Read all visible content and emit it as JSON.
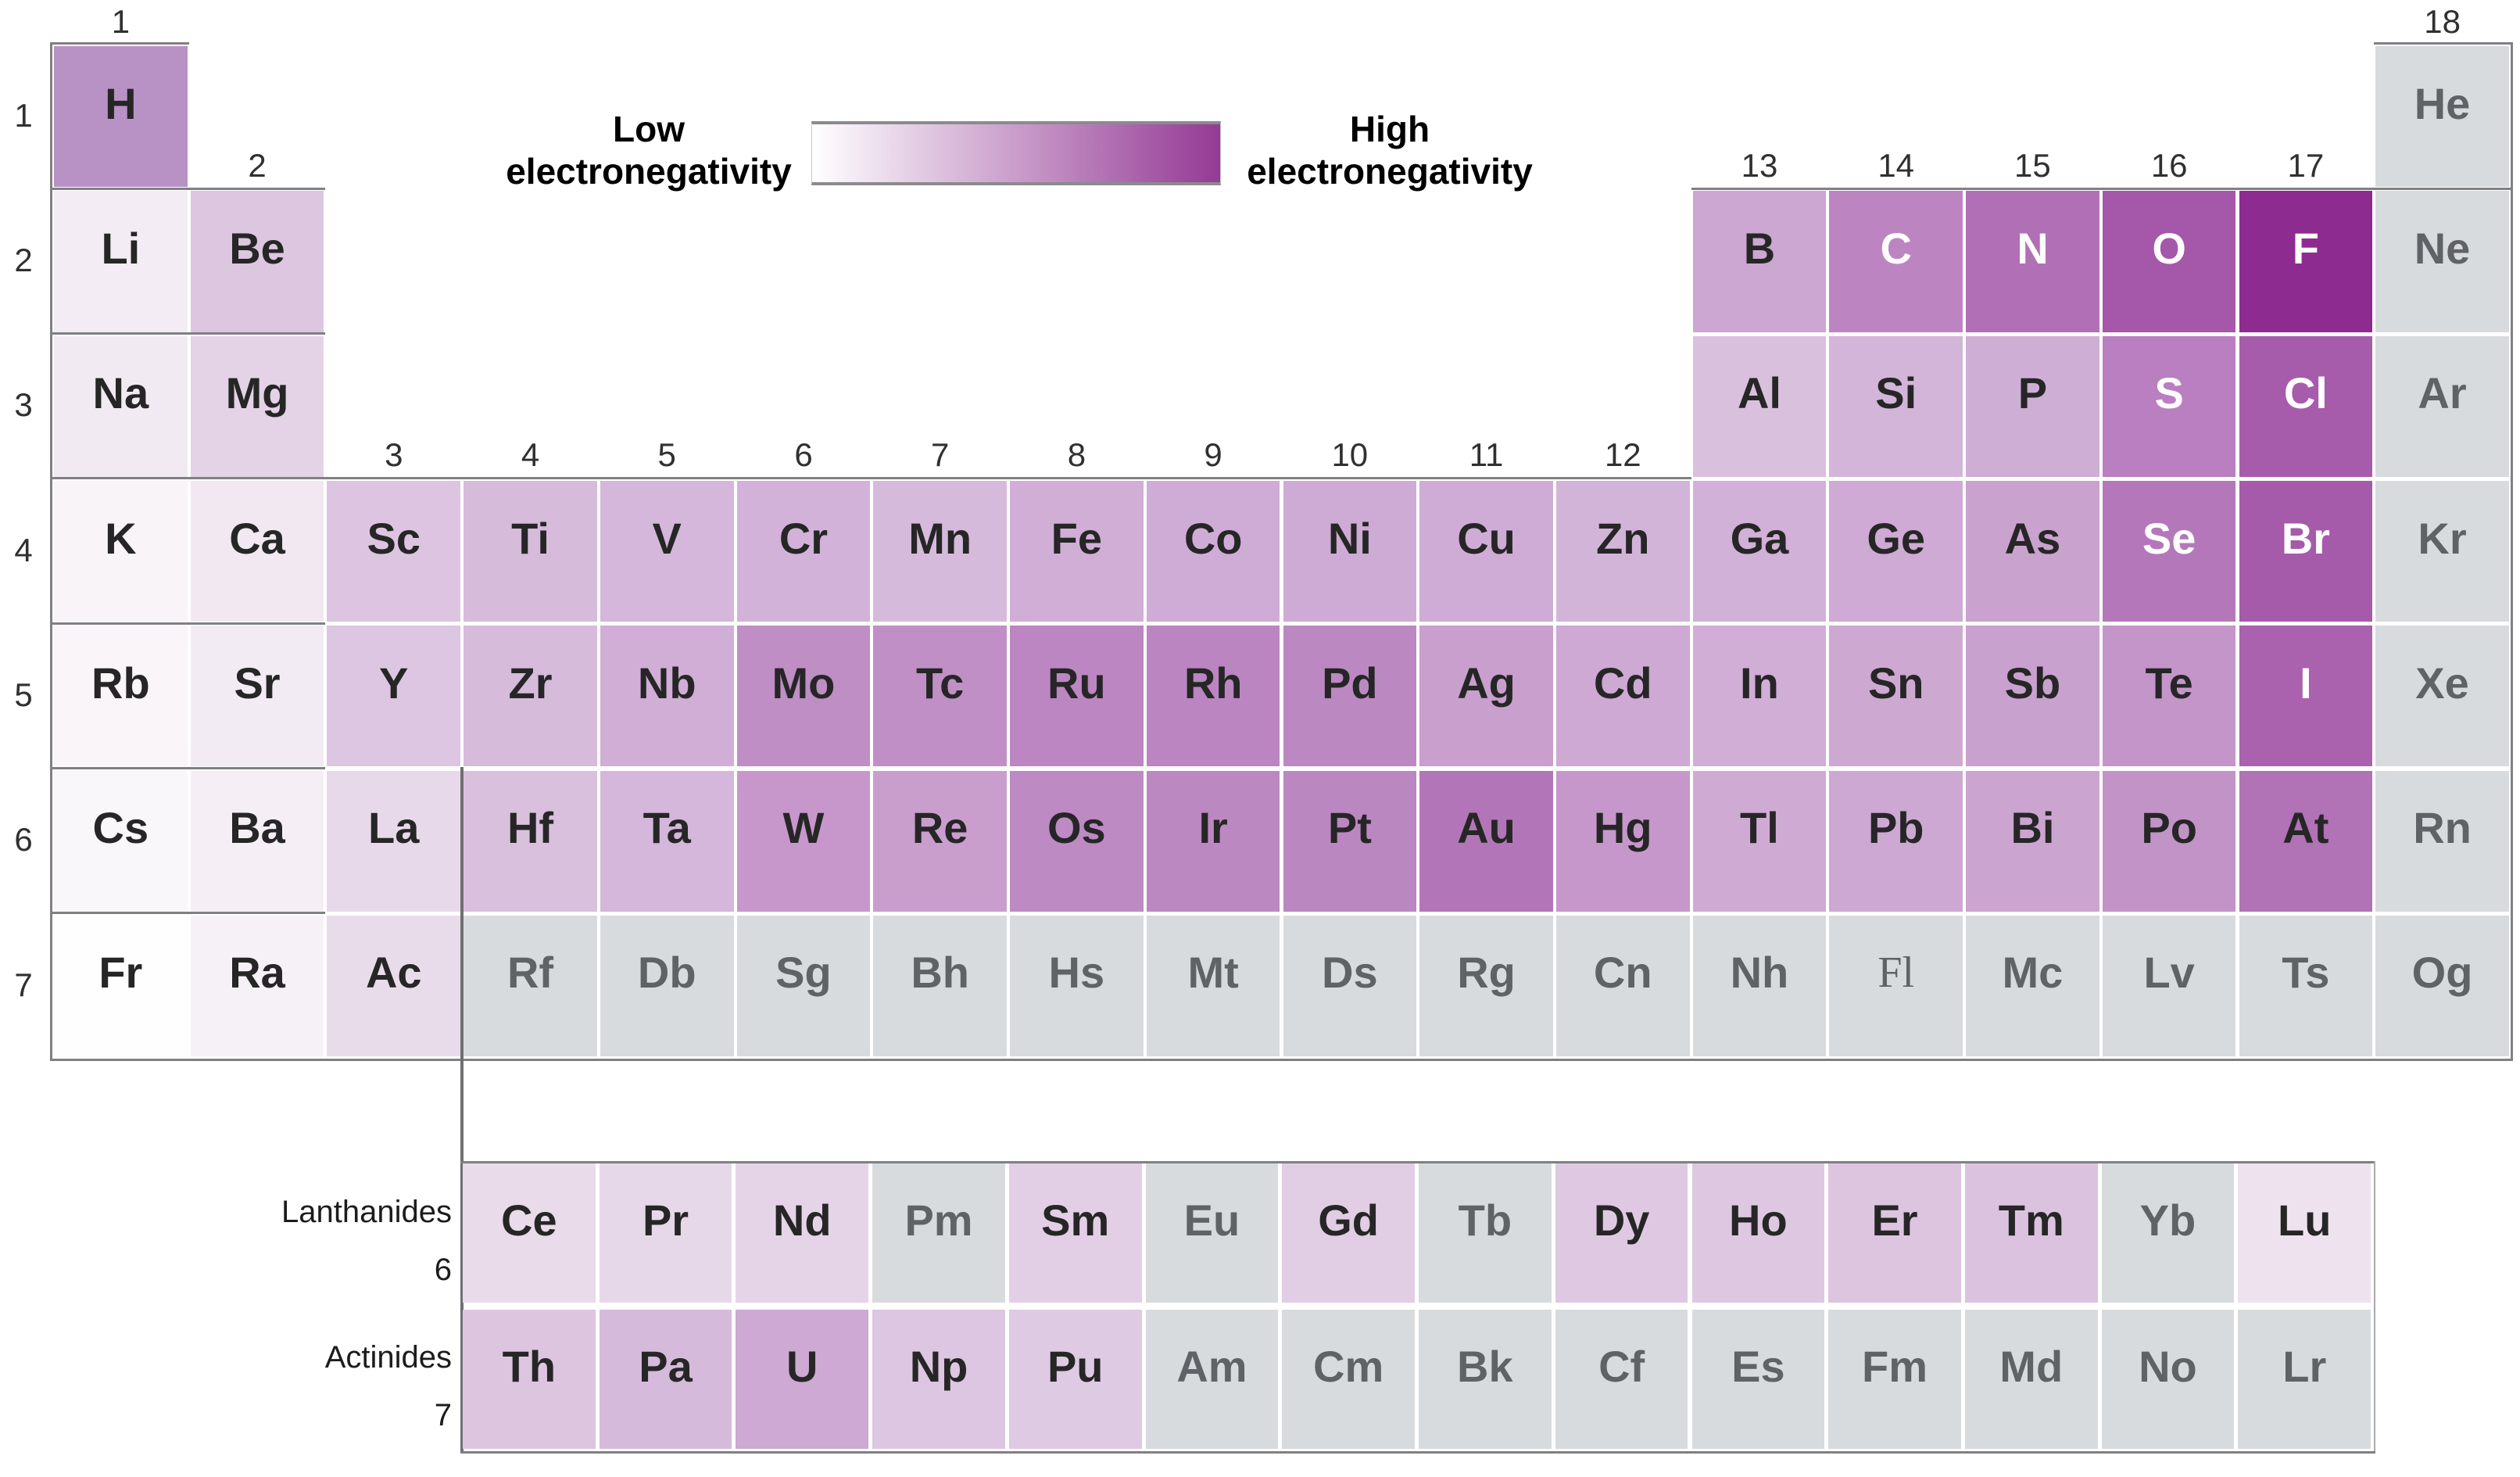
{
  "legend": {
    "low_line1": "Low",
    "low_line2": "electronegativity",
    "high_line1": "High",
    "high_line2": "electronegativity",
    "gradient_start": "#ffffff",
    "gradient_end": "#943a95"
  },
  "colors": {
    "background": "#ffffff",
    "gray_cell": "#d8dbde",
    "text_dark": "#262626",
    "text_white": "#ffffff",
    "text_gray": "#5f6266",
    "line": "#808083",
    "fblock_line": "#6f6f72",
    "block_edge": "#aaaaad"
  },
  "group_labels_top": [
    {
      "label": "1",
      "col": 0
    },
    {
      "label": "18",
      "col": 17
    }
  ],
  "group_labels_p": [
    {
      "label": "2",
      "col": 1
    },
    {
      "label": "13",
      "col": 12
    },
    {
      "label": "14",
      "col": 13
    },
    {
      "label": "15",
      "col": 14
    },
    {
      "label": "16",
      "col": 15
    },
    {
      "label": "17",
      "col": 16
    }
  ],
  "group_labels_d": [
    {
      "label": "3",
      "col": 2
    },
    {
      "label": "4",
      "col": 3
    },
    {
      "label": "5",
      "col": 4
    },
    {
      "label": "6",
      "col": 5
    },
    {
      "label": "7",
      "col": 6
    },
    {
      "label": "8",
      "col": 7
    },
    {
      "label": "9",
      "col": 8
    },
    {
      "label": "10",
      "col": 9
    },
    {
      "label": "11",
      "col": 10
    },
    {
      "label": "12",
      "col": 11
    }
  ],
  "period_labels": [
    "1",
    "2",
    "3",
    "4",
    "5",
    "6",
    "7"
  ],
  "elements": [
    {
      "symbol": "H",
      "row": 1,
      "col": 0,
      "bg": "#b892c5",
      "text": "dark"
    },
    {
      "symbol": "He",
      "row": 1,
      "col": 17,
      "bg": "#d8dbde",
      "text": "gray"
    },
    {
      "symbol": "Li",
      "row": 2,
      "col": 0,
      "bg": "#f3ecf4",
      "text": "dark"
    },
    {
      "symbol": "Be",
      "row": 2,
      "col": 1,
      "bg": "#dcc6e0",
      "text": "dark"
    },
    {
      "symbol": "B",
      "row": 2,
      "col": 12,
      "bg": "#cba7d1",
      "text": "dark"
    },
    {
      "symbol": "C",
      "row": 2,
      "col": 13,
      "bg": "#bc85c2",
      "text": "white"
    },
    {
      "symbol": "N",
      "row": 2,
      "col": 14,
      "bg": "#b170b6",
      "text": "white"
    },
    {
      "symbol": "O",
      "row": 2,
      "col": 15,
      "bg": "#a557a9",
      "text": "white"
    },
    {
      "symbol": "F",
      "row": 2,
      "col": 16,
      "bg": "#8e2b90",
      "text": "white"
    },
    {
      "symbol": "Ne",
      "row": 2,
      "col": 17,
      "bg": "#d8dbde",
      "text": "gray"
    },
    {
      "symbol": "Na",
      "row": 3,
      "col": 0,
      "bg": "#f2eaf3",
      "text": "dark"
    },
    {
      "symbol": "Mg",
      "row": 3,
      "col": 1,
      "bg": "#e4d2e6",
      "text": "dark"
    },
    {
      "symbol": "Al",
      "row": 3,
      "col": 12,
      "bg": "#d9c0dd",
      "text": "dark"
    },
    {
      "symbol": "Si",
      "row": 3,
      "col": 13,
      "bg": "#d3b5d9",
      "text": "dark"
    },
    {
      "symbol": "P",
      "row": 3,
      "col": 14,
      "bg": "#cfaed5",
      "text": "dark"
    },
    {
      "symbol": "S",
      "row": 3,
      "col": 15,
      "bg": "#ba7fc0",
      "text": "white"
    },
    {
      "symbol": "Cl",
      "row": 3,
      "col": 16,
      "bg": "#a75cab",
      "text": "white"
    },
    {
      "symbol": "Ar",
      "row": 3,
      "col": 17,
      "bg": "#d8dbde",
      "text": "gray"
    },
    {
      "symbol": "K",
      "row": 4,
      "col": 0,
      "bg": "#f8f4f8",
      "text": "dark"
    },
    {
      "symbol": "Ca",
      "row": 4,
      "col": 1,
      "bg": "#f1e8f2",
      "text": "dark"
    },
    {
      "symbol": "Sc",
      "row": 4,
      "col": 2,
      "bg": "#ddc5e1",
      "text": "dark"
    },
    {
      "symbol": "Ti",
      "row": 4,
      "col": 3,
      "bg": "#d6bbdb",
      "text": "dark"
    },
    {
      "symbol": "V",
      "row": 4,
      "col": 4,
      "bg": "#d4b7da",
      "text": "dark"
    },
    {
      "symbol": "Cr",
      "row": 4,
      "col": 5,
      "bg": "#d2b2d8",
      "text": "dark"
    },
    {
      "symbol": "Mn",
      "row": 4,
      "col": 6,
      "bg": "#d6badb",
      "text": "dark"
    },
    {
      "symbol": "Fe",
      "row": 4,
      "col": 7,
      "bg": "#d0aed6",
      "text": "dark"
    },
    {
      "symbol": "Co",
      "row": 4,
      "col": 8,
      "bg": "#cfacd5",
      "text": "dark"
    },
    {
      "symbol": "Ni",
      "row": 4,
      "col": 9,
      "bg": "#ceabd4",
      "text": "dark"
    },
    {
      "symbol": "Cu",
      "row": 4,
      "col": 10,
      "bg": "#cfacd5",
      "text": "dark"
    },
    {
      "symbol": "Zn",
      "row": 4,
      "col": 11,
      "bg": "#d3b4d9",
      "text": "dark"
    },
    {
      "symbol": "Ga",
      "row": 4,
      "col": 12,
      "bg": "#d1b1d7",
      "text": "dark"
    },
    {
      "symbol": "Ge",
      "row": 4,
      "col": 13,
      "bg": "#ceaad4",
      "text": "dark"
    },
    {
      "symbol": "As",
      "row": 4,
      "col": 14,
      "bg": "#c9a2ce",
      "text": "dark"
    },
    {
      "symbol": "Se",
      "row": 4,
      "col": 15,
      "bg": "#b478ba",
      "text": "white"
    },
    {
      "symbol": "Br",
      "row": 4,
      "col": 16,
      "bg": "#a65aaa",
      "text": "white"
    },
    {
      "symbol": "Kr",
      "row": 4,
      "col": 17,
      "bg": "#d8dbde",
      "text": "gray"
    },
    {
      "symbol": "Rb",
      "row": 5,
      "col": 0,
      "bg": "#f9f5f9",
      "text": "dark"
    },
    {
      "symbol": "Sr",
      "row": 5,
      "col": 1,
      "bg": "#f2ebf3",
      "text": "dark"
    },
    {
      "symbol": "Y",
      "row": 5,
      "col": 2,
      "bg": "#ddc6e1",
      "text": "dark"
    },
    {
      "symbol": "Zr",
      "row": 5,
      "col": 3,
      "bg": "#d6bbdb",
      "text": "dark"
    },
    {
      "symbol": "Nb",
      "row": 5,
      "col": 4,
      "bg": "#d0aed6",
      "text": "dark"
    },
    {
      "symbol": "Mo",
      "row": 5,
      "col": 5,
      "bg": "#bf8ec5",
      "text": "dark"
    },
    {
      "symbol": "Tc",
      "row": 5,
      "col": 6,
      "bg": "#c08fc5",
      "text": "dark"
    },
    {
      "symbol": "Ru",
      "row": 5,
      "col": 7,
      "bg": "#bb86c1",
      "text": "dark"
    },
    {
      "symbol": "Rh",
      "row": 5,
      "col": 8,
      "bg": "#ba85c0",
      "text": "dark"
    },
    {
      "symbol": "Pd",
      "row": 5,
      "col": 9,
      "bg": "#bc88c2",
      "text": "dark"
    },
    {
      "symbol": "Ag",
      "row": 5,
      "col": 10,
      "bg": "#c89fcd",
      "text": "dark"
    },
    {
      "symbol": "Cd",
      "row": 5,
      "col": 11,
      "bg": "#cda9d3",
      "text": "dark"
    },
    {
      "symbol": "In",
      "row": 5,
      "col": 12,
      "bg": "#d0aed6",
      "text": "dark"
    },
    {
      "symbol": "Sn",
      "row": 5,
      "col": 13,
      "bg": "#cda9d2",
      "text": "dark"
    },
    {
      "symbol": "Sb",
      "row": 5,
      "col": 14,
      "bg": "#c9a1ce",
      "text": "dark"
    },
    {
      "symbol": "Te",
      "row": 5,
      "col": 15,
      "bg": "#c495c9",
      "text": "dark"
    },
    {
      "symbol": "I",
      "row": 5,
      "col": 16,
      "bg": "#aa61ae",
      "text": "white"
    },
    {
      "symbol": "Xe",
      "row": 5,
      "col": 17,
      "bg": "#d8dbde",
      "text": "gray"
    },
    {
      "symbol": "Cs",
      "row": 6,
      "col": 0,
      "bg": "#faf7fa",
      "text": "dark"
    },
    {
      "symbol": "Ba",
      "row": 6,
      "col": 1,
      "bg": "#f5eff5",
      "text": "dark"
    },
    {
      "symbol": "La",
      "row": 6,
      "col": 2,
      "bg": "#e8d9ea",
      "text": "dark"
    },
    {
      "symbol": "Hf",
      "row": 6,
      "col": 3,
      "bg": "#d9c0dd",
      "text": "dark"
    },
    {
      "symbol": "Ta",
      "row": 6,
      "col": 4,
      "bg": "#d4b7da",
      "text": "dark"
    },
    {
      "symbol": "W",
      "row": 6,
      "col": 5,
      "bg": "#c797cb",
      "text": "dark"
    },
    {
      "symbol": "Re",
      "row": 6,
      "col": 6,
      "bg": "#c99ecd",
      "text": "dark"
    },
    {
      "symbol": "Os",
      "row": 6,
      "col": 7,
      "bg": "#bd8ac3",
      "text": "dark"
    },
    {
      "symbol": "Ir",
      "row": 6,
      "col": 8,
      "bg": "#bc88c2",
      "text": "dark"
    },
    {
      "symbol": "Pt",
      "row": 6,
      "col": 9,
      "bg": "#bb87c1",
      "text": "dark"
    },
    {
      "symbol": "Au",
      "row": 6,
      "col": 10,
      "bg": "#b276b8",
      "text": "dark"
    },
    {
      "symbol": "Hg",
      "row": 6,
      "col": 11,
      "bg": "#c697cb",
      "text": "dark"
    },
    {
      "symbol": "Tl",
      "row": 6,
      "col": 12,
      "bg": "#cfabd4",
      "text": "dark"
    },
    {
      "symbol": "Pb",
      "row": 6,
      "col": 13,
      "bg": "#cda8d2",
      "text": "dark"
    },
    {
      "symbol": "Bi",
      "row": 6,
      "col": 14,
      "bg": "#cba4d0",
      "text": "dark"
    },
    {
      "symbol": "Po",
      "row": 6,
      "col": 15,
      "bg": "#c293c7",
      "text": "dark"
    },
    {
      "symbol": "At",
      "row": 6,
      "col": 16,
      "bg": "#b172b6",
      "text": "dark"
    },
    {
      "symbol": "Rn",
      "row": 6,
      "col": 17,
      "bg": "#d8dbde",
      "text": "gray"
    },
    {
      "symbol": "Fr",
      "row": 7,
      "col": 0,
      "bg": "#fefefe",
      "text": "dark"
    },
    {
      "symbol": "Ra",
      "row": 7,
      "col": 1,
      "bg": "#f6f1f7",
      "text": "dark"
    },
    {
      "symbol": "Ac",
      "row": 7,
      "col": 2,
      "bg": "#e9dcea",
      "text": "dark"
    },
    {
      "symbol": "Rf",
      "row": 7,
      "col": 3,
      "bg": "#d8dbde",
      "text": "gray"
    },
    {
      "symbol": "Db",
      "row": 7,
      "col": 4,
      "bg": "#d8dbde",
      "text": "gray"
    },
    {
      "symbol": "Sg",
      "row": 7,
      "col": 5,
      "bg": "#d8dbde",
      "text": "gray"
    },
    {
      "symbol": "Bh",
      "row": 7,
      "col": 6,
      "bg": "#d8dbde",
      "text": "gray"
    },
    {
      "symbol": "Hs",
      "row": 7,
      "col": 7,
      "bg": "#d8dbde",
      "text": "gray"
    },
    {
      "symbol": "Mt",
      "row": 7,
      "col": 8,
      "bg": "#d8dbde",
      "text": "gray"
    },
    {
      "symbol": "Ds",
      "row": 7,
      "col": 9,
      "bg": "#d8dbde",
      "text": "gray"
    },
    {
      "symbol": "Rg",
      "row": 7,
      "col": 10,
      "bg": "#d8dbde",
      "text": "gray"
    },
    {
      "symbol": "Cn",
      "row": 7,
      "col": 11,
      "bg": "#d8dbde",
      "text": "gray"
    },
    {
      "symbol": "Nh",
      "row": 7,
      "col": 12,
      "bg": "#d8dbde",
      "text": "gray"
    },
    {
      "symbol": "Fl",
      "row": 7,
      "col": 13,
      "bg": "#d8dbde",
      "text": "gray",
      "serif": true
    },
    {
      "symbol": "Mc",
      "row": 7,
      "col": 14,
      "bg": "#d8dbde",
      "text": "gray"
    },
    {
      "symbol": "Lv",
      "row": 7,
      "col": 15,
      "bg": "#d8dbde",
      "text": "gray"
    },
    {
      "symbol": "Ts",
      "row": 7,
      "col": 16,
      "bg": "#d8dbde",
      "text": "gray"
    },
    {
      "symbol": "Og",
      "row": 7,
      "col": 17,
      "bg": "#d8dbde",
      "text": "gray"
    }
  ],
  "f_block": {
    "lanthanides": {
      "label": "Lanthanides",
      "period_label": "6",
      "elements": [
        {
          "symbol": "Ce",
          "bg": "#e9dbea",
          "text": "dark"
        },
        {
          "symbol": "Pr",
          "bg": "#e7d8e9",
          "text": "dark"
        },
        {
          "symbol": "Nd",
          "bg": "#e5d4e7",
          "text": "dark"
        },
        {
          "symbol": "Pm",
          "bg": "#d8dbde",
          "text": "gray"
        },
        {
          "symbol": "Sm",
          "bg": "#e3cfe5",
          "text": "dark"
        },
        {
          "symbol": "Eu",
          "bg": "#d8dbde",
          "text": "gray"
        },
        {
          "symbol": "Gd",
          "bg": "#e1cde4",
          "text": "dark"
        },
        {
          "symbol": "Tb",
          "bg": "#d8dbde",
          "text": "gray"
        },
        {
          "symbol": "Dy",
          "bg": "#dfc9e2",
          "text": "dark"
        },
        {
          "symbol": "Ho",
          "bg": "#dec8e1",
          "text": "dark"
        },
        {
          "symbol": "Er",
          "bg": "#ddc5e0",
          "text": "dark"
        },
        {
          "symbol": "Tm",
          "bg": "#dbc3df",
          "text": "dark"
        },
        {
          "symbol": "Yb",
          "bg": "#d8dbde",
          "text": "gray"
        },
        {
          "symbol": "Lu",
          "bg": "#eee2ef",
          "text": "dark"
        }
      ]
    },
    "actinides": {
      "label": "Actinides",
      "period_label": "7",
      "elements": [
        {
          "symbol": "Th",
          "bg": "#ddc5e0",
          "text": "dark"
        },
        {
          "symbol": "Pa",
          "bg": "#d5badb",
          "text": "dark"
        },
        {
          "symbol": "U",
          "bg": "#cda9d3",
          "text": "dark"
        },
        {
          "symbol": "Np",
          "bg": "#ddc6e1",
          "text": "dark"
        },
        {
          "symbol": "Pu",
          "bg": "#decae2",
          "text": "dark"
        },
        {
          "symbol": "Am",
          "bg": "#d8dbde",
          "text": "gray"
        },
        {
          "symbol": "Cm",
          "bg": "#d8dbde",
          "text": "gray"
        },
        {
          "symbol": "Bk",
          "bg": "#d8dbde",
          "text": "gray"
        },
        {
          "symbol": "Cf",
          "bg": "#d8dbde",
          "text": "gray"
        },
        {
          "symbol": "Es",
          "bg": "#d8dbde",
          "text": "gray"
        },
        {
          "symbol": "Fm",
          "bg": "#d8dbde",
          "text": "gray"
        },
        {
          "symbol": "Md",
          "bg": "#d8dbde",
          "text": "gray"
        },
        {
          "symbol": "No",
          "bg": "#d8dbde",
          "text": "gray"
        },
        {
          "symbol": "Lr",
          "bg": "#d8dbde",
          "text": "gray"
        }
      ]
    }
  }
}
